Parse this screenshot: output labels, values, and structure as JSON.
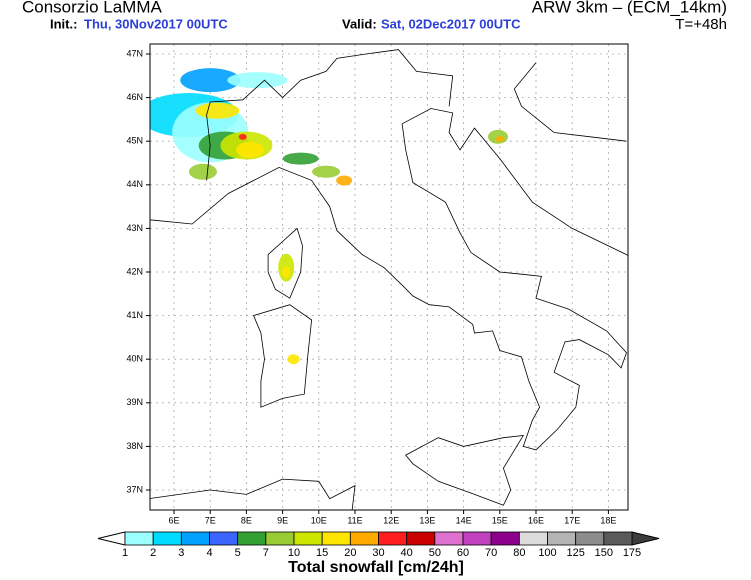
{
  "header": {
    "title": "Consorzio LaMMA",
    "init_label": "Init.:",
    "init_date": "Thu, 30Nov2017 00UTC",
    "valid_label": "Valid:",
    "valid_date": "Sat, 02Dec2017 00UTC",
    "model": "ARW 3km – (ECM_14km)",
    "lead_time": "T=+48h"
  },
  "map": {
    "lat_labels": [
      "47N",
      "46N",
      "45N",
      "44N",
      "43N",
      "42N",
      "41N",
      "40N",
      "39N",
      "38N",
      "37N"
    ],
    "lon_labels": [
      "6E",
      "7E",
      "8E",
      "9E",
      "10E",
      "11E",
      "12E",
      "13E",
      "14E",
      "15E",
      "16E",
      "17E",
      "18E"
    ]
  },
  "colorbar": {
    "labels": [
      "1",
      "2",
      "3",
      "4",
      "5",
      "7",
      "10",
      "15",
      "20",
      "30",
      "40",
      "50",
      "60",
      "70",
      "80",
      "100",
      "125",
      "150",
      "175"
    ],
    "colors": [
      "#9bffff",
      "#00dcff",
      "#00a0ff",
      "#3c64ff",
      "#33a033",
      "#99cc33",
      "#cce600",
      "#ffe600",
      "#ffaa00",
      "#ff1e1e",
      "#c80000",
      "#e070d0",
      "#c040c0",
      "#8c008c",
      "#dcdcdc",
      "#b4b4b4",
      "#8c8c8c",
      "#5a5a5a"
    ],
    "under_color": "#ffffff",
    "over_color": "#3c3c3c",
    "title": "Total snowfall [cm/24h]"
  }
}
